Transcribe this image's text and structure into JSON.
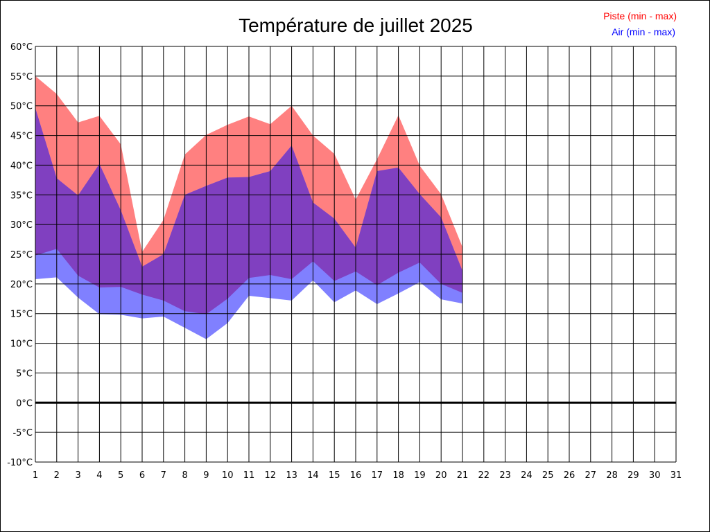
{
  "chart_data": {
    "type": "area",
    "title": "Température de juillet 2025",
    "xlabel": "",
    "ylabel": "",
    "x": [
      1,
      2,
      3,
      4,
      5,
      6,
      7,
      8,
      9,
      10,
      11,
      12,
      13,
      14,
      15,
      16,
      17,
      18,
      19,
      20,
      21,
      22,
      23,
      24,
      25,
      26,
      27,
      28,
      29,
      30,
      31
    ],
    "xlim": [
      1,
      31
    ],
    "ylim": [
      -10,
      60
    ],
    "y_ticks": [
      60,
      55,
      50,
      45,
      40,
      35,
      30,
      25,
      20,
      15,
      10,
      5,
      0,
      -5,
      -10
    ],
    "y_tick_labels": [
      "60°C",
      "55°C",
      "50°C",
      "45°C",
      "40°C",
      "35°C",
      "30°C",
      "25°C",
      "20°C",
      "15°C",
      "10°C",
      "5°C",
      "0°C",
      "-5°C",
      "-10°C"
    ],
    "x_tick_labels": [
      "1",
      "2",
      "3",
      "4",
      "5",
      "6",
      "7",
      "8",
      "9",
      "10",
      "11",
      "12",
      "13",
      "14",
      "15",
      "16",
      "17",
      "18",
      "19",
      "20",
      "21",
      "22",
      "23",
      "24",
      "25",
      "26",
      "27",
      "28",
      "29",
      "30",
      "31"
    ],
    "grid": true,
    "zero_line": true,
    "legend_position": "top-right",
    "series": [
      {
        "name": "Piste (min - max)",
        "color": "#ff8080",
        "text_color": "#ff0000",
        "min": [
          24.8,
          25.9,
          21.4,
          19.4,
          19.5,
          18.2,
          17.2,
          15.4,
          14.9,
          17.5,
          21.0,
          21.5,
          20.8,
          23.8,
          20.5,
          22.1,
          19.8,
          21.9,
          23.6,
          20.0,
          18.5
        ],
        "max": [
          55.0,
          52.0,
          47.2,
          48.3,
          43.5,
          25.4,
          30.8,
          41.8,
          45.1,
          46.8,
          48.2,
          46.9,
          50.0,
          45.0,
          41.9,
          34.2,
          41.0,
          48.4,
          39.9,
          35.1,
          26.2
        ]
      },
      {
        "name": "Air (min - max)",
        "color": "#8080ff",
        "text_color": "#0000ff",
        "min": [
          20.8,
          21.1,
          17.7,
          14.9,
          14.8,
          14.2,
          14.5,
          12.6,
          10.7,
          13.4,
          18.0,
          17.6,
          17.2,
          20.6,
          16.9,
          18.9,
          16.6,
          18.4,
          20.3,
          17.4,
          16.7
        ],
        "max": [
          49.6,
          37.8,
          34.9,
          40.2,
          32.4,
          22.9,
          25.0,
          35.0,
          36.5,
          37.9,
          38.0,
          39.0,
          43.3,
          33.7,
          31.0,
          26.1,
          39.0,
          39.6,
          35.1,
          31.2,
          22.2
        ]
      }
    ],
    "overlap_color": "#8040c0"
  }
}
